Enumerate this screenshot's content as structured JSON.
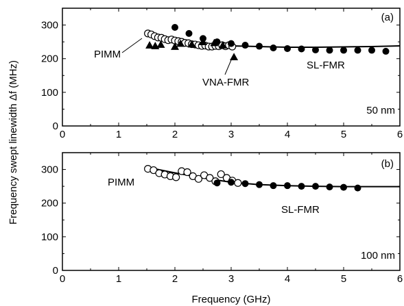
{
  "chart_data": [
    {
      "type": "scatter",
      "panel_label": "(a)",
      "thickness_label": "50 nm",
      "xlim": [
        0,
        6
      ],
      "ylim": [
        0,
        350
      ],
      "xticks": [
        0,
        1,
        2,
        3,
        4,
        5,
        6
      ],
      "yticks": [
        0,
        100,
        200,
        300
      ],
      "annotations": [
        "PIMM",
        "VNA-FMR",
        "SL-FMR"
      ],
      "series": [
        {
          "marker": "open-circle",
          "x": [
            1.52,
            1.58,
            1.64,
            1.7,
            1.76,
            1.82,
            1.88,
            1.94,
            2.0,
            2.06,
            2.12,
            2.18,
            2.24,
            2.3,
            2.36,
            2.42,
            2.48,
            2.54,
            2.6,
            2.66,
            2.72,
            2.78,
            2.84,
            2.9,
            2.96,
            3.02
          ],
          "y": [
            275,
            272,
            267,
            263,
            262,
            258,
            255,
            257,
            254,
            252,
            250,
            247,
            246,
            243,
            242,
            240,
            238,
            239,
            236,
            236,
            238,
            237,
            240,
            237,
            240,
            236
          ]
        },
        {
          "marker": "filled-triangle",
          "x": [
            1.55,
            1.65,
            1.75,
            2.0,
            2.1,
            2.3,
            2.5,
            2.7,
            2.85,
            3.05
          ],
          "y": [
            240,
            238,
            242,
            236,
            245,
            243,
            250,
            247,
            240,
            205
          ]
        },
        {
          "marker": "filled-circle",
          "x": [
            2.0,
            2.25,
            2.5,
            2.75,
            3.0,
            3.25,
            3.5,
            3.75,
            4.0,
            4.25,
            4.5,
            4.75,
            5.0,
            5.25,
            5.5,
            5.75
          ],
          "y": [
            293,
            275,
            260,
            250,
            245,
            240,
            237,
            232,
            230,
            229,
            226,
            225,
            225,
            225,
            225,
            222
          ]
        },
        {
          "marker": "line",
          "x": [
            1.55,
            2.0,
            2.5,
            3.0,
            3.5,
            4.0,
            4.5,
            5.0,
            5.5,
            6.0
          ],
          "y": [
            275,
            255,
            242,
            238,
            236,
            234,
            234,
            235,
            236,
            238
          ]
        }
      ]
    },
    {
      "type": "scatter",
      "panel_label": "(b)",
      "thickness_label": "100 nm",
      "xlabel": "Frequency (GHz)",
      "xlim": [
        0,
        6
      ],
      "ylim": [
        0,
        350
      ],
      "xticks": [
        0,
        1,
        2,
        3,
        4,
        5,
        6
      ],
      "yticks": [
        0,
        100,
        200,
        300
      ],
      "annotations": [
        "PIMM",
        "SL-FMR"
      ],
      "series": [
        {
          "marker": "open-circle",
          "x": [
            1.52,
            1.62,
            1.72,
            1.82,
            1.92,
            2.02,
            2.12,
            2.22,
            2.32,
            2.42,
            2.52,
            2.62,
            2.72,
            2.82,
            2.92,
            3.02,
            3.12
          ],
          "y": [
            302,
            298,
            289,
            285,
            280,
            277,
            295,
            292,
            280,
            272,
            283,
            275,
            265,
            286,
            275,
            267,
            260
          ]
        },
        {
          "marker": "filled-circle",
          "x": [
            2.75,
            3.0,
            3.25,
            3.5,
            3.75,
            4.0,
            4.25,
            4.5,
            4.75,
            5.0,
            5.25
          ],
          "y": [
            260,
            262,
            258,
            255,
            252,
            252,
            250,
            250,
            248,
            247,
            245
          ]
        },
        {
          "marker": "line",
          "x": [
            1.55,
            2.0,
            2.5,
            3.0,
            3.5,
            4.0,
            4.5,
            5.0,
            5.5,
            6.0
          ],
          "y": [
            305,
            290,
            275,
            262,
            255,
            252,
            250,
            249,
            249,
            249
          ]
        }
      ]
    }
  ],
  "ylabel": "Frequency swept linewidth Δf (MHz)"
}
